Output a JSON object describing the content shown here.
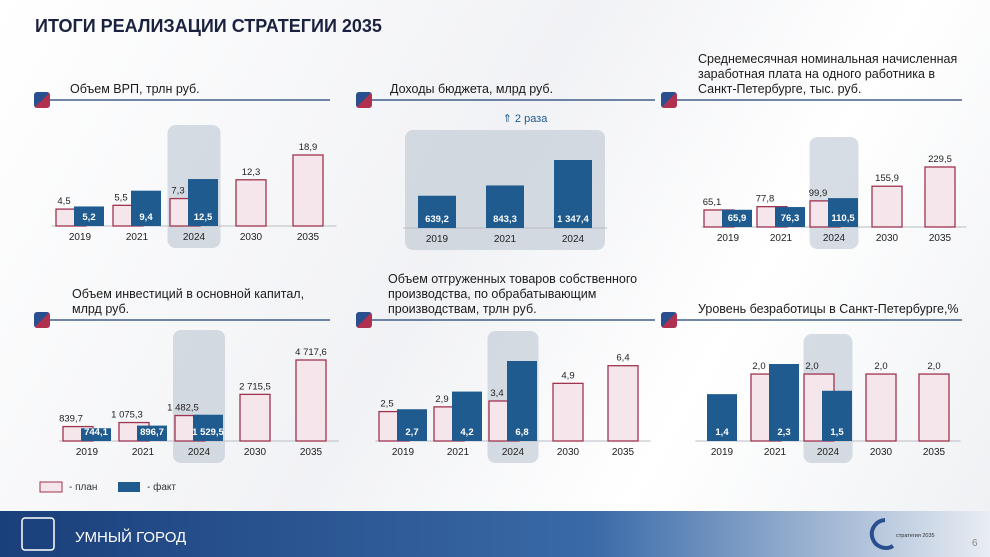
{
  "title": "ИТОГИ РЕАЛИЗАЦИИ СТРАТЕГИИ 2035",
  "legend": [
    {
      "name": "- план",
      "color": "#f4e6eb"
    },
    {
      "name": "- факт",
      "color": "#1f5b8f"
    }
  ],
  "footer": {
    "section": "УМНЫЙ ГОРОД",
    "logo": "стратегия 2035",
    "page_number": "6"
  },
  "chart_data": [
    {
      "type": "bar",
      "title": "Объем ВРП, трлн руб.",
      "categories": [
        "2019",
        "2021",
        "2024",
        "2030",
        "2035"
      ],
      "series": [
        {
          "color": "#f4e6eb",
          "values": [
            4.5,
            5.5,
            7.3,
            12.3,
            18.9
          ],
          "value_labels": [
            "4,5",
            "5,5",
            "7,3",
            "12,3",
            "18,9"
          ]
        },
        {
          "color": "#1f5b8f",
          "values": [
            5.2,
            9.4,
            12.5,
            null,
            null
          ],
          "value_labels": [
            "5,2",
            "9,4",
            "12,5",
            null,
            null
          ]
        }
      ]
    },
    {
      "type": "bar",
      "title": "Доходы бюджета, млрд руб.",
      "categories": [
        "2019",
        "2021",
        "2024"
      ],
      "annotation": "⇑ 2 раза",
      "series": [
        {
          "color": "#1f5b8f",
          "values": [
            639.2,
            843.3,
            1347.4
          ],
          "value_labels": [
            "639,2",
            "843,3",
            "1 347,4"
          ]
        }
      ]
    },
    {
      "type": "bar",
      "title": "Среднемесячная номинальная начисленная заработная плата на одного работника в Санкт-Петербурге, тыс. руб.",
      "categories": [
        "2019",
        "2021",
        "2024",
        "2030",
        "2035"
      ],
      "series": [
        {
          "color": "#f4e6eb",
          "values": [
            65.1,
            77.8,
            99.9,
            155.9,
            229.5
          ],
          "value_labels": [
            "65,1",
            "77,8",
            "99,9",
            "155,9",
            "229,5"
          ]
        },
        {
          "color": "#1f5b8f",
          "values": [
            65.9,
            76.3,
            110.5,
            null,
            null
          ],
          "value_labels": [
            "65,9",
            "76,3",
            "110,5",
            null,
            null
          ]
        }
      ]
    },
    {
      "type": "bar",
      "title": "Объем инвестиций в основной капитал, млрд руб.",
      "categories": [
        "2019",
        "2021",
        "2024",
        "2030",
        "2035"
      ],
      "series": [
        {
          "color": "#f4e6eb",
          "values": [
            839.7,
            1075.3,
            1482.5,
            2715.5,
            4717.6
          ],
          "value_labels": [
            "839,7",
            "1 075,3",
            "1 482,5",
            "2 715,5",
            "4 717,6"
          ]
        },
        {
          "color": "#1f5b8f",
          "values": [
            744.1,
            896.7,
            1529.5,
            null,
            null
          ],
          "value_labels": [
            "744,1",
            "896,7",
            "1 529,5",
            null,
            null
          ]
        }
      ]
    },
    {
      "type": "bar",
      "title": "Объем отгруженных товаров собственного производства, по обрабатывающим производствам, трлн руб.",
      "categories": [
        "2019",
        "2021",
        "2024",
        "2030",
        "2035"
      ],
      "series": [
        {
          "color": "#f4e6eb",
          "values": [
            2.5,
            2.9,
            3.4,
            4.9,
            6.4
          ],
          "value_labels": [
            "2,5",
            "2,9",
            "3,4",
            "4,9",
            "6,4"
          ]
        },
        {
          "color": "#1f5b8f",
          "values": [
            2.7,
            4.2,
            6.8,
            null,
            null
          ],
          "value_labels": [
            "2,7",
            "4,2",
            "6,8",
            null,
            null
          ]
        }
      ]
    },
    {
      "type": "bar",
      "title": "Уровень безработицы в Санкт-Петербурге,%",
      "categories": [
        "2019",
        "2021",
        "2024",
        "2030",
        "2035"
      ],
      "series": [
        {
          "color": "#f4e6eb",
          "values": [
            null,
            2.0,
            2.0,
            2.0,
            2.0
          ],
          "value_labels": [
            null,
            "2,0",
            "2,0",
            "2,0",
            "2,0"
          ]
        },
        {
          "color": "#1f5b8f",
          "values": [
            1.4,
            2.3,
            1.5,
            null,
            null
          ],
          "value_labels": [
            "1,4",
            "2,3",
            "1,5",
            null,
            null
          ]
        }
      ]
    }
  ]
}
